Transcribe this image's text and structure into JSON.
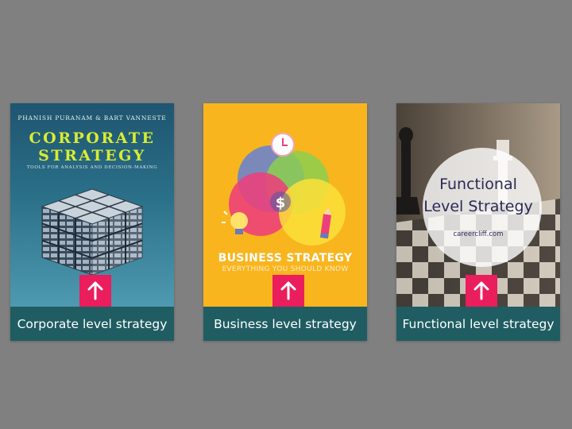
{
  "colors": {
    "page_background": "#808080",
    "caption_background": "#1f5d62",
    "caption_text": "#ffffff",
    "arrow_button": "#ea1d5d"
  },
  "cards": [
    {
      "caption": "Corporate level strategy",
      "icon": "arrow-up-icon",
      "cover": {
        "authors": "PHANISH PURANAM & BART VANNESTE",
        "title_line1": "CORPORATE",
        "title_line2": "STRATEGY",
        "subtitle": "TOOLS FOR ANALYSIS AND DECISION-MAKING"
      }
    },
    {
      "caption": "Business level strategy",
      "icon": "arrow-up-icon",
      "cover": {
        "title": "BUSINESS STRATEGY",
        "subtitle": "EVERYTHING YOU SHOULD KNOW"
      }
    },
    {
      "caption": "Functional level strategy",
      "icon": "arrow-up-icon",
      "cover": {
        "title_line1": "Functional",
        "title_line2": "Level Strategy",
        "url": "careercliff.com"
      }
    }
  ]
}
